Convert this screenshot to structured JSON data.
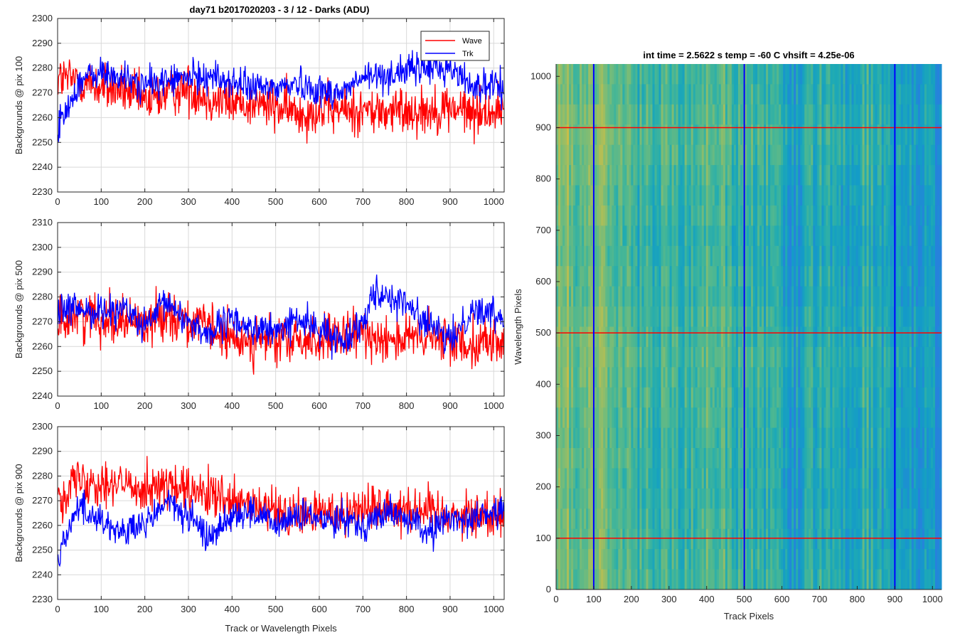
{
  "figure_title": "day71 b2017020203 - 3 / 12 - Darks (ADU)",
  "image_title": "int time = 2.5622 s    temp = -60 C    vhsift = 4.25e-06",
  "colors": {
    "wave": "#ff0000",
    "trk": "#0000ff",
    "grid": "#d9d9d9",
    "axis": "#262626"
  },
  "chart_data": [
    {
      "type": "line",
      "ylabel": "Backgrounds @ pix 100",
      "xlabel": "",
      "xlim": [
        0,
        1024
      ],
      "ylim": [
        2230,
        2300
      ],
      "xticks": [
        0,
        100,
        200,
        300,
        400,
        500,
        600,
        700,
        800,
        900,
        1000
      ],
      "yticks": [
        2230,
        2240,
        2250,
        2260,
        2270,
        2280,
        2290,
        2300
      ],
      "grid": true,
      "legend": "top-right",
      "series": [
        {
          "name": "Wave",
          "color": "#ff0000",
          "noise": 9,
          "x": [
            0,
            50,
            100,
            150,
            200,
            250,
            300,
            350,
            400,
            450,
            500,
            550,
            600,
            650,
            700,
            750,
            800,
            850,
            900,
            950,
            1024
          ],
          "values": [
            2276,
            2275,
            2272,
            2271,
            2266,
            2270,
            2272,
            2268,
            2266,
            2266,
            2264,
            2262,
            2263,
            2263,
            2263,
            2262,
            2263,
            2263,
            2264,
            2262,
            2263
          ]
        },
        {
          "name": "Trk",
          "color": "#0000ff",
          "noise": 6,
          "x": [
            0,
            20,
            50,
            100,
            150,
            200,
            250,
            300,
            350,
            400,
            450,
            500,
            550,
            600,
            650,
            700,
            750,
            800,
            850,
            900,
            950,
            1024
          ],
          "values": [
            2257,
            2262,
            2275,
            2278,
            2276,
            2273,
            2275,
            2276,
            2277,
            2274,
            2272,
            2272,
            2274,
            2271,
            2270,
            2276,
            2277,
            2279,
            2280,
            2280,
            2273,
            2272
          ]
        }
      ]
    },
    {
      "type": "line",
      "ylabel": "Backgrounds @ pix 500",
      "xlabel": "",
      "xlim": [
        0,
        1024
      ],
      "ylim": [
        2240,
        2310
      ],
      "xticks": [
        0,
        100,
        200,
        300,
        400,
        500,
        600,
        700,
        800,
        900,
        1000
      ],
      "yticks": [
        2240,
        2250,
        2260,
        2270,
        2280,
        2290,
        2300,
        2310
      ],
      "grid": true,
      "series": [
        {
          "name": "Wave",
          "color": "#ff0000",
          "noise": 9,
          "x": [
            0,
            50,
            100,
            150,
            200,
            250,
            300,
            350,
            400,
            450,
            500,
            550,
            600,
            650,
            700,
            750,
            800,
            850,
            900,
            950,
            1024
          ],
          "values": [
            2270,
            2273,
            2272,
            2271,
            2269,
            2274,
            2270,
            2267,
            2262,
            2263,
            2262,
            2262,
            2263,
            2263,
            2265,
            2264,
            2263,
            2263,
            2262,
            2262,
            2262
          ]
        },
        {
          "name": "Trk",
          "color": "#0000ff",
          "noise": 6,
          "x": [
            0,
            50,
            100,
            150,
            200,
            250,
            300,
            350,
            400,
            450,
            500,
            550,
            600,
            650,
            700,
            720,
            750,
            800,
            850,
            900,
            950,
            1024
          ],
          "values": [
            2274,
            2275,
            2274,
            2276,
            2267,
            2278,
            2270,
            2265,
            2271,
            2267,
            2266,
            2271,
            2267,
            2262,
            2270,
            2282,
            2281,
            2277,
            2269,
            2262,
            2275,
            2272
          ]
        }
      ]
    },
    {
      "type": "line",
      "ylabel": "Backgrounds @ pix 900",
      "xlabel": "Track or Wavelength Pixels",
      "xlim": [
        0,
        1024
      ],
      "ylim": [
        2230,
        2300
      ],
      "xticks": [
        0,
        100,
        200,
        300,
        400,
        500,
        600,
        700,
        800,
        900,
        1000
      ],
      "yticks": [
        2230,
        2240,
        2250,
        2260,
        2270,
        2280,
        2290,
        2300
      ],
      "grid": true,
      "series": [
        {
          "name": "Wave",
          "color": "#ff0000",
          "noise": 9,
          "x": [
            0,
            50,
            100,
            150,
            200,
            250,
            300,
            350,
            400,
            450,
            500,
            550,
            600,
            650,
            700,
            750,
            800,
            850,
            900,
            950,
            1024
          ],
          "values": [
            2272,
            2279,
            2278,
            2276,
            2276,
            2276,
            2273,
            2272,
            2268,
            2268,
            2265,
            2264,
            2265,
            2266,
            2267,
            2268,
            2267,
            2266,
            2265,
            2264,
            2265
          ]
        },
        {
          "name": "Trk",
          "color": "#0000ff",
          "noise": 6,
          "x": [
            0,
            20,
            50,
            100,
            150,
            200,
            250,
            300,
            350,
            400,
            450,
            500,
            550,
            600,
            650,
            700,
            750,
            800,
            850,
            900,
            950,
            1024
          ],
          "values": [
            2246,
            2257,
            2268,
            2262,
            2257,
            2260,
            2270,
            2263,
            2255,
            2265,
            2265,
            2260,
            2264,
            2262,
            2264,
            2260,
            2265,
            2263,
            2257,
            2263,
            2263,
            2266
          ]
        }
      ]
    },
    {
      "type": "heatmap",
      "title": "int time = 2.5622 s    temp = -60 C    vhsift = 4.25e-06",
      "xlabel": "Track Pixels",
      "ylabel": "Wavelength Pixels",
      "xlim": [
        0,
        1024
      ],
      "ylim": [
        0,
        1024
      ],
      "xticks": [
        0,
        100,
        200,
        300,
        400,
        500,
        600,
        700,
        800,
        900,
        1000
      ],
      "yticks": [
        0,
        100,
        200,
        300,
        400,
        500,
        600,
        700,
        800,
        900,
        1000
      ],
      "colormap": "parula",
      "vertical_markers": {
        "x": [
          100,
          500,
          900
        ],
        "color": "#0000ff"
      },
      "horizontal_markers": {
        "y": [
          100,
          500,
          900
        ],
        "color": "#ff0000"
      }
    }
  ]
}
